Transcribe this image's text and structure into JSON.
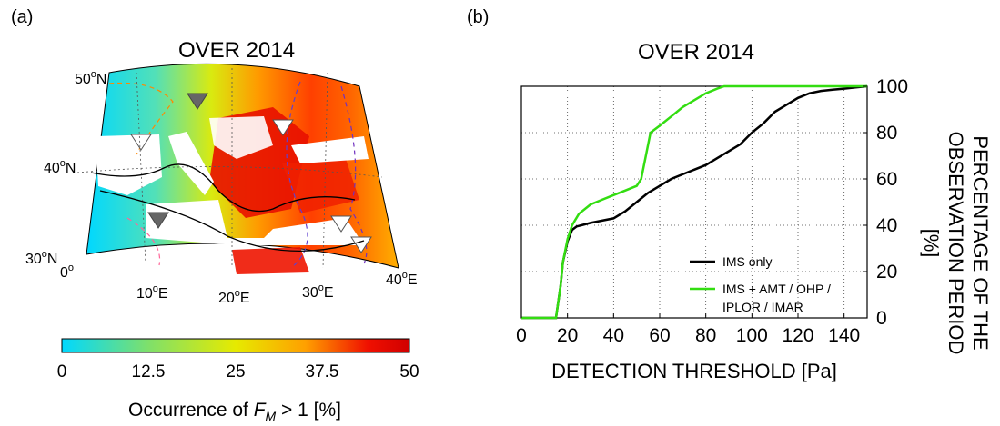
{
  "panel_a": {
    "label": "(a)",
    "title": "OVER 2014",
    "lat_labels": [
      "50",
      "40",
      "30"
    ],
    "lat_suffix": "N",
    "lon_labels": [
      "0",
      "10",
      "20",
      "30",
      "40"
    ],
    "lon_suffix": "E",
    "deg": "o",
    "colorbar": {
      "ticks": [
        "0",
        "12.5",
        "25",
        "37.5",
        "50"
      ],
      "label_prefix": "Occurrence of ",
      "label_var": "F",
      "label_sub": "M",
      "label_suffix": " > 1 [%]",
      "colors": [
        "#00d8ff",
        "#7fe06a",
        "#e6ea00",
        "#ffa000",
        "#f01000",
        "#d00000"
      ]
    }
  },
  "panel_b": {
    "label": "(b)",
    "title": "OVER 2014"
  },
  "chart_data": {
    "type": "line",
    "title": "OVER 2014",
    "xlabel": "DETECTION THRESHOLD [Pa]",
    "ylabel": "PERCENTAGE OF THE OBSERVATION PERIOD [%]",
    "ylabel_lines": [
      "PERCENTAGE OF THE",
      "OBSERVATION PERIOD",
      "[%]"
    ],
    "xlim": [
      0,
      150
    ],
    "ylim": [
      0,
      100
    ],
    "xticks": [
      0,
      20,
      40,
      60,
      80,
      100,
      120,
      140
    ],
    "yticks": [
      0,
      20,
      40,
      60,
      80,
      100
    ],
    "grid": true,
    "legend_position": "bottom-right",
    "series": [
      {
        "name": "IMS only",
        "color": "#000000",
        "x": [
          0,
          15,
          17,
          18,
          20,
          22,
          24,
          26,
          30,
          35,
          40,
          45,
          50,
          55,
          60,
          65,
          70,
          75,
          80,
          85,
          90,
          95,
          100,
          105,
          110,
          115,
          120,
          125,
          130,
          135,
          140,
          145,
          150
        ],
        "y": [
          0,
          0,
          14,
          24,
          33,
          38,
          39.5,
          40,
          41,
          42,
          43,
          46,
          50,
          54,
          57,
          60,
          62,
          64,
          66,
          69,
          72,
          75,
          80,
          84,
          89,
          92,
          95,
          97,
          98,
          98.5,
          99,
          99.5,
          100
        ]
      },
      {
        "name": "IMS + AMT / OHP / IPLOR / IMAR",
        "name_lines": [
          "IMS + AMT / OHP /",
          "IPLOR / IMAR"
        ],
        "color": "#33dd11",
        "x": [
          0,
          15,
          17,
          18,
          20,
          22,
          25,
          30,
          35,
          40,
          45,
          50,
          52,
          54,
          56,
          60,
          65,
          70,
          75,
          80,
          85,
          88,
          90,
          95,
          100,
          150
        ],
        "y": [
          0,
          0,
          14,
          24,
          34,
          40,
          45,
          49,
          51,
          53,
          55,
          57,
          60,
          70,
          80,
          83,
          87,
          91,
          94,
          97,
          99,
          100,
          100,
          100,
          100,
          100
        ]
      }
    ]
  }
}
